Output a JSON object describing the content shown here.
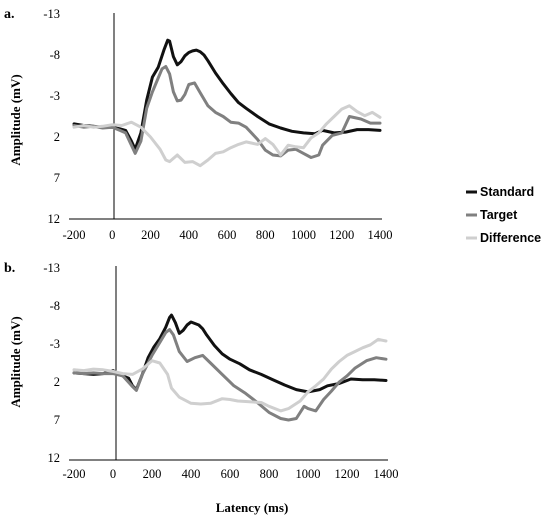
{
  "figure": {
    "xlabel": "Latency (ms)"
  },
  "legend": [
    {
      "label": "Standard",
      "color": "#111111"
    },
    {
      "label": "Target",
      "color": "#808080"
    },
    {
      "label": "Difference",
      "color": "#cfcfcf"
    }
  ],
  "chart_data": [
    {
      "type": "line",
      "panel_label": "a.",
      "xlabel": "",
      "ylabel": "Amplitude (mV)",
      "xlim": [
        -200,
        1400
      ],
      "ylim": [
        12,
        -13
      ],
      "y_inverted": true,
      "x_ticks": [
        "-200",
        "0",
        "200",
        "400",
        "600",
        "800",
        "1000",
        "1200",
        "1400"
      ],
      "y_ticks": [
        "-13",
        "-8",
        "-3",
        "2",
        "7",
        "12"
      ],
      "series": [
        {
          "name": "Standard",
          "color": "#111111",
          "x": [
            -200,
            -150,
            -100,
            -50,
            0,
            40,
            70,
            100,
            120,
            150,
            180,
            210,
            240,
            270,
            290,
            300,
            320,
            340,
            360,
            380,
            400,
            420,
            440,
            460,
            480,
            500,
            540,
            580,
            620,
            660,
            700,
            760,
            820,
            880,
            940,
            1000,
            1060,
            1100,
            1160,
            1220,
            1280,
            1340,
            1400
          ],
          "y": [
            0.4,
            0.6,
            0.7,
            0.8,
            0.8,
            1.0,
            1.2,
            2.5,
            3.5,
            1.5,
            -2.5,
            -5.3,
            -6.5,
            -8.6,
            -9.8,
            -9.7,
            -7.8,
            -6.8,
            -7.2,
            -7.9,
            -8.3,
            -8.5,
            -8.6,
            -8.4,
            -8.0,
            -7.3,
            -5.8,
            -4.5,
            -3.3,
            -2.2,
            -1.5,
            -0.5,
            0.4,
            0.9,
            1.3,
            1.5,
            1.6,
            1.2,
            1.5,
            1.4,
            1.1,
            1.1,
            1.2
          ]
        },
        {
          "name": "Target",
          "color": "#808080",
          "x": [
            -200,
            -150,
            -100,
            -50,
            0,
            40,
            70,
            100,
            120,
            150,
            180,
            210,
            240,
            260,
            280,
            300,
            320,
            340,
            360,
            380,
            400,
            430,
            460,
            500,
            540,
            580,
            620,
            660,
            700,
            760,
            800,
            840,
            880,
            920,
            960,
            1000,
            1040,
            1080,
            1100,
            1150,
            1200,
            1240,
            1300,
            1350,
            1400
          ],
          "y": [
            0.6,
            0.8,
            0.7,
            0.9,
            0.8,
            1.2,
            1.5,
            3.0,
            4.0,
            2.5,
            -1.5,
            -3.5,
            -5.2,
            -6.3,
            -6.6,
            -5.7,
            -3.5,
            -2.4,
            -2.5,
            -3.2,
            -4.4,
            -4.6,
            -3.4,
            -1.8,
            -1.0,
            -0.5,
            0.2,
            0.3,
            0.8,
            2.3,
            3.6,
            4.2,
            4.3,
            3.6,
            3.5,
            4.0,
            4.5,
            4.2,
            3.0,
            1.8,
            1.5,
            -0.5,
            -0.2,
            0.3,
            0.3
          ]
        },
        {
          "name": "Difference",
          "color": "#cfcfcf",
          "x": [
            -200,
            -150,
            -100,
            -50,
            0,
            50,
            100,
            150,
            200,
            250,
            280,
            300,
            340,
            380,
            420,
            460,
            500,
            540,
            580,
            620,
            660,
            700,
            760,
            800,
            840,
            880,
            920,
            960,
            1000,
            1040,
            1080,
            1120,
            1160,
            1200,
            1240,
            1280,
            1320,
            1360,
            1400
          ],
          "y": [
            0.8,
            0.6,
            0.8,
            0.7,
            0.5,
            0.6,
            0.2,
            0.8,
            2.0,
            3.5,
            4.8,
            5.0,
            4.2,
            5.1,
            5.0,
            5.5,
            4.8,
            4.0,
            3.8,
            3.3,
            2.9,
            2.6,
            2.9,
            2.2,
            2.9,
            4.2,
            3.0,
            3.2,
            3.3,
            2.1,
            1.5,
            0.4,
            -0.5,
            -1.4,
            -1.8,
            -1.1,
            -0.6,
            -1.0,
            -0.4
          ]
        }
      ]
    },
    {
      "type": "line",
      "panel_label": "b.",
      "xlabel": "Latency (ms)",
      "ylabel": "Amplitude (mV)",
      "xlim": [
        -200,
        1400
      ],
      "ylim": [
        12,
        -13
      ],
      "y_inverted": true,
      "x_ticks": [
        "-200",
        "0",
        "200",
        "400",
        "600",
        "800",
        "1000",
        "1200",
        "1400"
      ],
      "y_ticks": [
        "-13",
        "-8",
        "-3",
        "2",
        "7",
        "12"
      ],
      "series": [
        {
          "name": "Standard",
          "color": "#111111",
          "x": [
            -200,
            -150,
            -100,
            -50,
            0,
            50,
            80,
            100,
            120,
            150,
            180,
            210,
            240,
            270,
            290,
            300,
            320,
            340,
            360,
            380,
            400,
            420,
            440,
            460,
            480,
            520,
            560,
            600,
            650,
            700,
            760,
            820,
            880,
            940,
            1000,
            1060,
            1100,
            1160,
            1220,
            1280,
            1340,
            1400
          ],
          "y": [
            0.8,
            0.9,
            1.0,
            0.9,
            0.5,
            1.2,
            1.5,
            2.5,
            3.0,
            1.0,
            -1.2,
            -2.6,
            -3.7,
            -5.2,
            -6.5,
            -6.8,
            -5.8,
            -4.4,
            -4.8,
            -5.5,
            -5.9,
            -5.7,
            -5.5,
            -5.0,
            -4.2,
            -2.8,
            -1.7,
            -1.0,
            -0.4,
            0.4,
            1.0,
            1.7,
            2.4,
            3.0,
            3.3,
            3.0,
            2.5,
            2.2,
            1.6,
            1.7,
            1.7,
            1.8
          ]
        },
        {
          "name": "Target",
          "color": "#808080",
          "x": [
            -200,
            -150,
            -100,
            -50,
            0,
            50,
            100,
            120,
            150,
            200,
            240,
            270,
            290,
            310,
            340,
            380,
            420,
            460,
            500,
            560,
            620,
            680,
            740,
            800,
            860,
            900,
            940,
            980,
            1000,
            1040,
            1080,
            1120,
            1160,
            1200,
            1240,
            1300,
            1350,
            1400
          ],
          "y": [
            0.8,
            0.9,
            0.8,
            0.9,
            0.9,
            1.2,
            2.6,
            3.1,
            1.0,
            -1.5,
            -3.2,
            -4.5,
            -4.9,
            -4.2,
            -2.0,
            -0.7,
            -1.2,
            -1.5,
            -0.5,
            1.0,
            2.5,
            3.5,
            4.7,
            6.0,
            6.8,
            7.0,
            6.8,
            5.2,
            5.5,
            5.8,
            4.3,
            3.2,
            2.0,
            1.2,
            0.2,
            -0.8,
            -1.2,
            -1.0
          ]
        },
        {
          "name": "Difference",
          "color": "#cfcfcf",
          "x": [
            -200,
            -150,
            -100,
            -50,
            0,
            50,
            100,
            150,
            200,
            240,
            280,
            300,
            340,
            400,
            450,
            500,
            560,
            600,
            640,
            700,
            760,
            800,
            860,
            900,
            960,
            1000,
            1040,
            1080,
            1120,
            1160,
            1200,
            1240,
            1280,
            1320,
            1360,
            1400
          ],
          "y": [
            0.4,
            0.5,
            0.3,
            0.4,
            0.6,
            0.9,
            1.0,
            0.3,
            -0.8,
            -0.5,
            1.0,
            2.8,
            4.0,
            4.8,
            4.9,
            4.8,
            4.2,
            4.3,
            4.5,
            4.6,
            4.7,
            5.2,
            5.8,
            5.5,
            4.5,
            3.3,
            2.5,
            1.6,
            0.3,
            -0.7,
            -1.5,
            -2.0,
            -2.5,
            -2.9,
            -3.6,
            -3.4
          ]
        }
      ]
    }
  ]
}
